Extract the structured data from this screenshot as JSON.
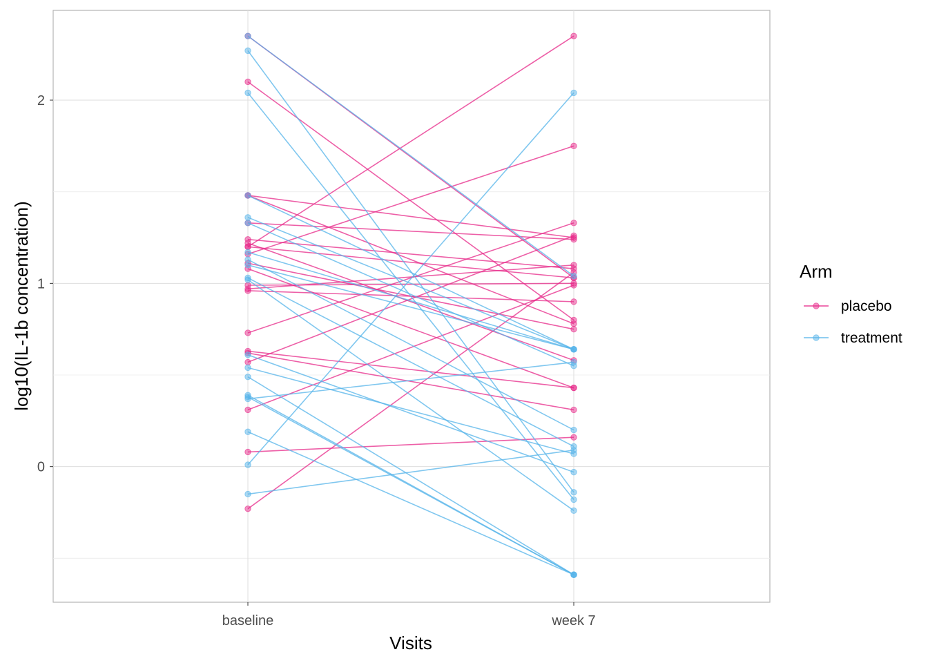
{
  "chart_data": {
    "type": "line",
    "xlabel": "Visits",
    "ylabel": "log10(IL-1b concentration)",
    "categories": [
      "baseline",
      "week 7"
    ],
    "yticks": [
      0,
      1,
      2
    ],
    "ylim": [
      -0.74,
      2.49
    ],
    "grid": true,
    "legend": {
      "title": "Arm",
      "position": "right",
      "entries": [
        {
          "name": "placebo",
          "color": "#E7298A"
        },
        {
          "name": "treatment",
          "color": "#56B4E9"
        }
      ]
    },
    "series": [
      {
        "name": "placebo",
        "color": "#E7298A",
        "subjects": [
          [
            2.35,
            1.03
          ],
          [
            2.1,
            0.8
          ],
          [
            1.48,
            1.25
          ],
          [
            1.48,
            0.78
          ],
          [
            1.33,
            1.24
          ],
          [
            1.24,
            1.08
          ],
          [
            1.22,
            0.58
          ],
          [
            1.2,
            2.35
          ],
          [
            1.2,
            1.03
          ],
          [
            1.16,
            1.75
          ],
          [
            1.11,
            0.75
          ],
          [
            1.08,
            0.43
          ],
          [
            0.99,
            1.0
          ],
          [
            0.97,
            1.1
          ],
          [
            0.96,
            0.9
          ],
          [
            0.73,
            1.33
          ],
          [
            0.63,
            0.43
          ],
          [
            0.62,
            0.31
          ],
          [
            0.57,
            1.26
          ],
          [
            0.31,
            0.99
          ],
          [
            0.08,
            0.16
          ],
          [
            -0.23,
            1.06
          ]
        ]
      },
      {
        "name": "treatment",
        "color": "#56B4E9",
        "subjects": [
          [
            2.35,
            1.04
          ],
          [
            2.27,
            -0.14
          ],
          [
            2.04,
            -0.18
          ],
          [
            1.48,
            0.64
          ],
          [
            1.36,
            0.64
          ],
          [
            1.33,
            0.55
          ],
          [
            1.17,
            0.64
          ],
          [
            1.13,
            0.2
          ],
          [
            1.1,
            0.64
          ],
          [
            1.03,
            0.11
          ],
          [
            1.02,
            -0.24
          ],
          [
            0.61,
            -0.03
          ],
          [
            0.54,
            0.07
          ],
          [
            0.49,
            -0.59
          ],
          [
            0.39,
            -0.59
          ],
          [
            0.38,
            -0.59
          ],
          [
            0.37,
            0.57
          ],
          [
            0.19,
            -0.59
          ],
          [
            0.01,
            2.04
          ],
          [
            -0.15,
            0.09
          ]
        ]
      }
    ]
  }
}
